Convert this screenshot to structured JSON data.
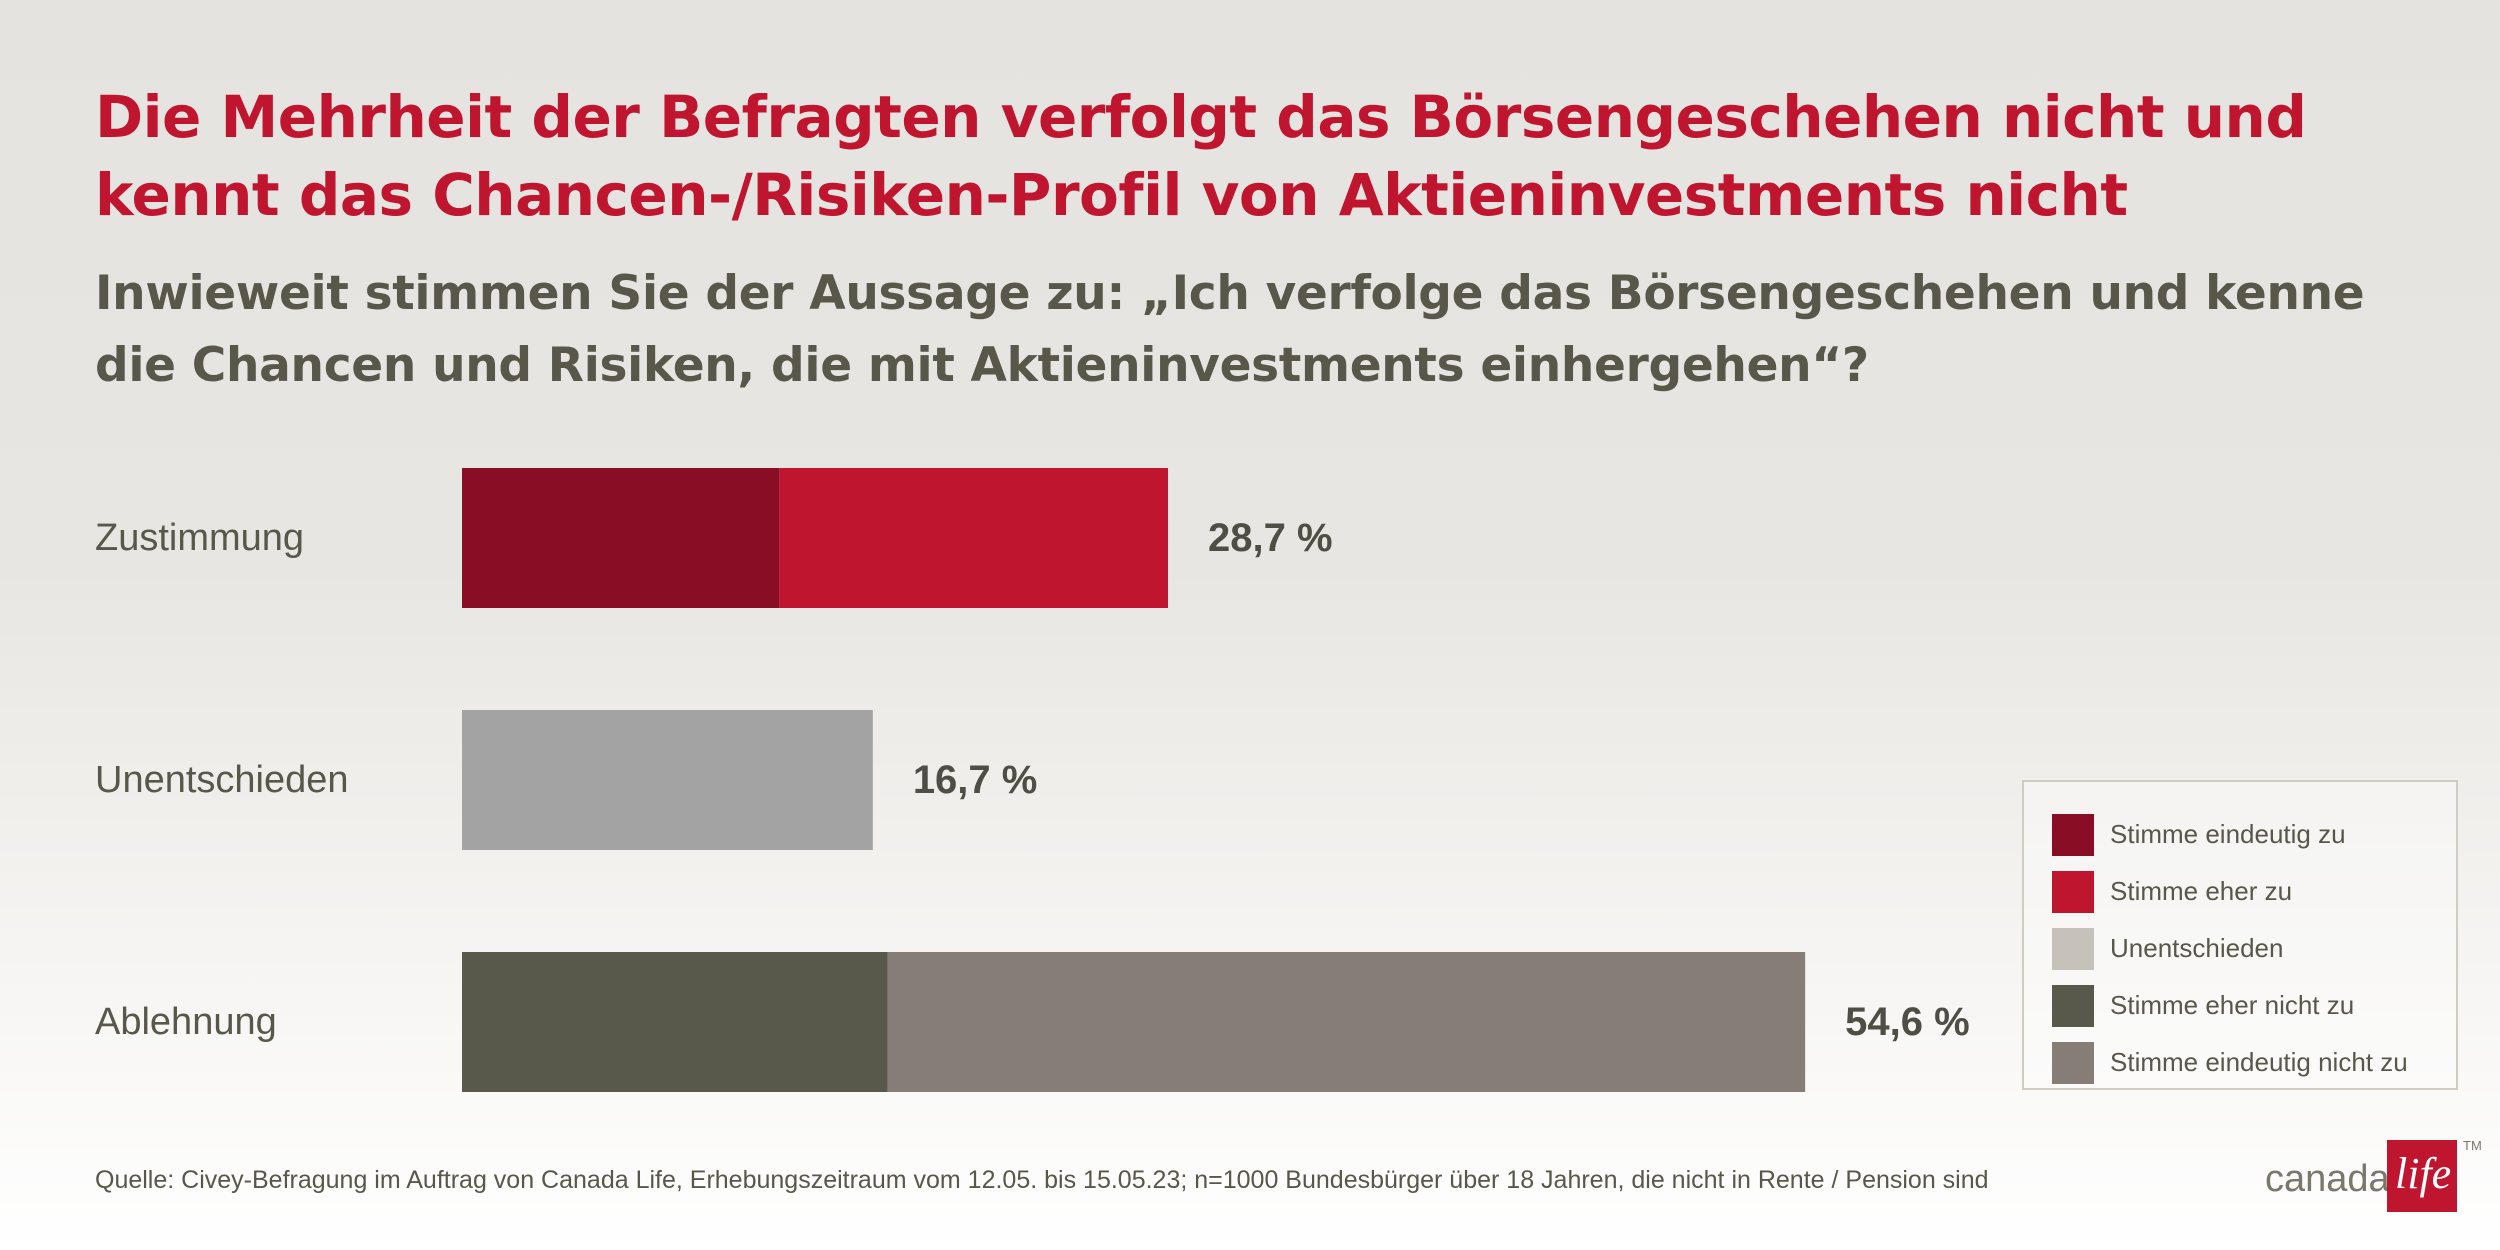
{
  "headline": "Die Mehrheit der Befragten verfolgt das Börsengeschehen nicht und kennt das Chancen-/Risiken-Profil von Aktieninvestments nicht",
  "subheadline": "Inwieweit stimmen Sie der Aussage zu: „Ich verfolge das Börsengeschehen und kenne die Chancen und Risiken, die mit Aktieninvestments einhergehen“?",
  "chart_data": {
    "type": "bar",
    "orientation": "horizontal",
    "stacked": true,
    "unit": "%",
    "xlim": [
      0,
      54.6
    ],
    "grid": false,
    "legend_position": "bottom-right",
    "categories": [
      "Zustimmung",
      "Unentschieden",
      "Ablehnung"
    ],
    "totals": [
      28.7,
      16.7,
      54.6
    ],
    "total_labels": [
      "28,7 %",
      "16,7 %",
      "54,6 %"
    ],
    "series": [
      {
        "name": "Stimme eindeutig zu",
        "color": "#8a0d26",
        "values": [
          12.9,
          0,
          0
        ]
      },
      {
        "name": "Stimme eher zu",
        "color": "#c0152f",
        "values": [
          15.8,
          0,
          0
        ]
      },
      {
        "name": "Unentschieden",
        "color": "#a3a3a3",
        "values": [
          0,
          16.7,
          0
        ]
      },
      {
        "name": "Stimme eher nicht zu",
        "color": "#58584b",
        "values": [
          0,
          0,
          17.3
        ]
      },
      {
        "name": "Stimme eindeutig nicht zu",
        "color": "#857d76",
        "values": [
          0,
          0,
          37.3
        ]
      }
    ]
  },
  "legend": {
    "items": [
      {
        "label": "Stimme eindeutig zu",
        "color": "#8a0d26"
      },
      {
        "label": "Stimme eher zu",
        "color": "#c0152f"
      },
      {
        "label": "Unentschieden",
        "color": "#c6c2ba"
      },
      {
        "label": "Stimme eher nicht zu",
        "color": "#58584b"
      },
      {
        "label": "Stimme eindeutig nicht zu",
        "color": "#857d76"
      }
    ]
  },
  "source": "Quelle: Civey-Befragung im Auftrag von Canada Life, Erhebungszeitraum vom 12.05. bis 15.05.23; n=1000 Bundesbürger über 18 Jahren, die nicht in Rente / Pension sind",
  "logo": {
    "word": "canada",
    "box_text": "life",
    "trademark": "TM",
    "brand_color": "#c0152f"
  }
}
